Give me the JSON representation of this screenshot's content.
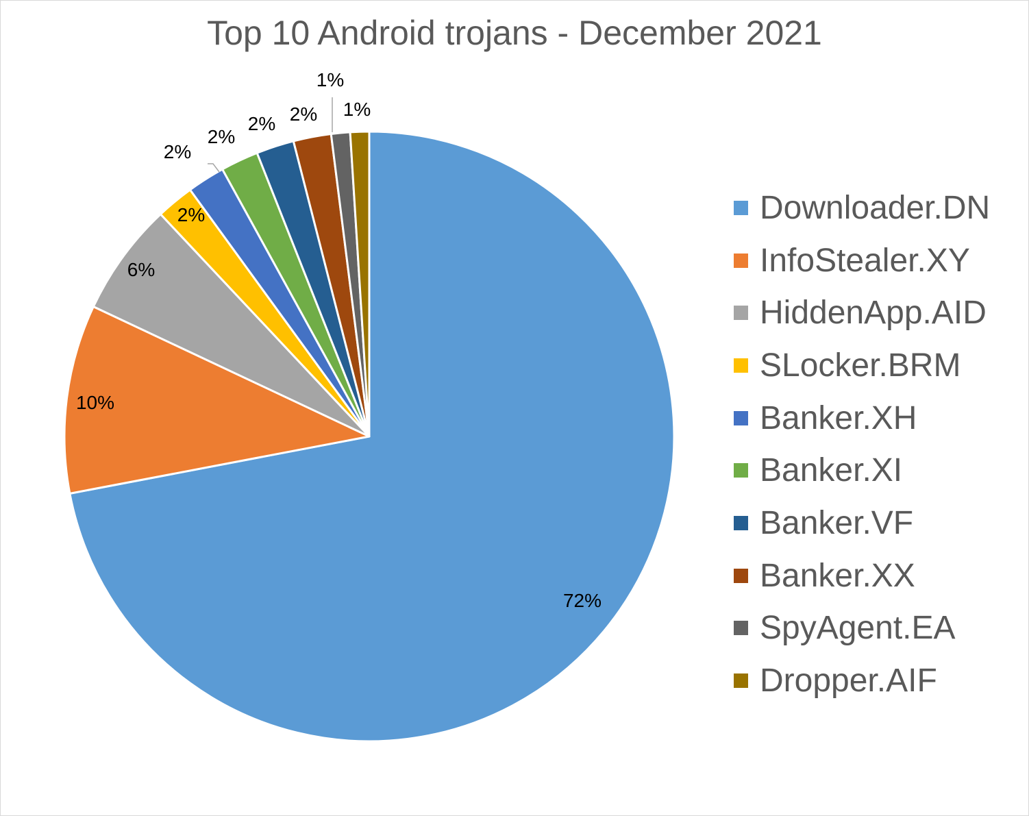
{
  "chart_data": {
    "type": "pie",
    "title": "Top 10 Android trojans - December 2021",
    "categories": [
      "Downloader.DN",
      "InfoStealer.XY",
      "HiddenApp.AID",
      "SLocker.BRM",
      "Banker.XH",
      "Banker.XI",
      "Banker.VF",
      "Banker.XX",
      "SpyAgent.EA",
      "Dropper.AIF"
    ],
    "values": [
      72,
      10,
      6,
      2,
      2,
      2,
      2,
      2,
      1,
      1
    ],
    "data_labels": [
      "72%",
      "10%",
      "6%",
      "2%",
      "2%",
      "2%",
      "2%",
      "2%",
      "1%",
      "1%"
    ],
    "colors": [
      "#5b9bd5",
      "#ed7d31",
      "#a5a5a5",
      "#ffc000",
      "#4472c4",
      "#70ad47",
      "#255e91",
      "#9e480e",
      "#636363",
      "#997300"
    ],
    "legend_position": "right",
    "direction": "clockwise-from-top"
  }
}
